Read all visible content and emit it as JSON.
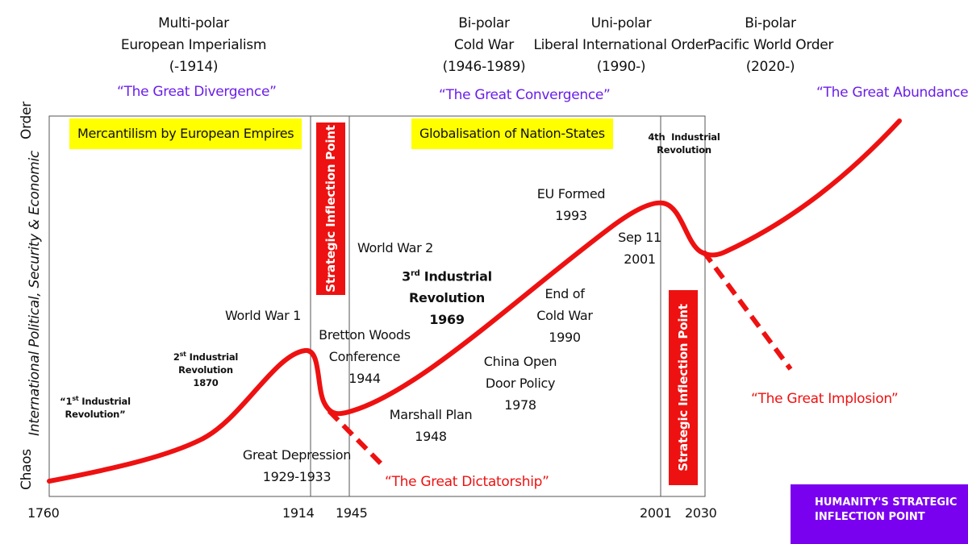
{
  "eras": [
    {
      "line1": "Multi-polar",
      "line2": "European Imperialism",
      "line3": "(-1914)"
    },
    {
      "line1": "Bi-polar",
      "line2": "Cold War",
      "line3": "(1946-1989)"
    },
    {
      "line1": "Uni-polar",
      "line2": "Liberal International Order",
      "line3": "(1990-)"
    },
    {
      "line1": "Bi-polar",
      "line2": "Pacific World Order",
      "line3": "(2020-)"
    }
  ],
  "phrases": {
    "divergence": "“The Great Divergence”",
    "convergence": "“The Great Convergence”",
    "abundance": "“The Great Abundance”",
    "implosion": "“The Great Implosion”",
    "dictatorship": "“The Great Dictatorship”"
  },
  "banners": {
    "mercantilism": "Mercantilism by European Empires",
    "globalisation": "Globalisation of Nation-States"
  },
  "inflection_label": "Strategic Inflection Point",
  "y_axis": {
    "top": "Order",
    "middle": "International Political, Security & Economic",
    "bottom": "Chaos"
  },
  "x_ticks": [
    "1760",
    "1914",
    "1945",
    "2001",
    "2030"
  ],
  "events": {
    "ir1": {
      "line1_pre": "“1",
      "sup": "st",
      "line1_post": " Industrial",
      "line2": "Revolution”"
    },
    "ir2": {
      "line1_pre": "2",
      "sup": "st",
      "line1_post": " Industrial",
      "line2": "Revolution",
      "line3": "1870"
    },
    "ww1": "World War 1",
    "depression": {
      "line1": "Great Depression",
      "line2": "1929-1933"
    },
    "bretton": {
      "line1": "Bretton Woods",
      "line2": "Conference",
      "line3": "1944"
    },
    "ww2": "World War 2",
    "ir3": {
      "line1_pre": "3",
      "sup": "rd",
      "line1_post": " Industrial",
      "line2": "Revolution",
      "line3": "1969"
    },
    "marshall": {
      "line1": "Marshall Plan",
      "line2": "1948"
    },
    "china": {
      "line1": "China Open",
      "line2": "Door Policy",
      "line3": "1978"
    },
    "coldwar": {
      "line1": "End of",
      "line2": "Cold War",
      "line3": "1990"
    },
    "eu": {
      "line1": "EU Formed",
      "line2": "1993"
    },
    "sep11": {
      "line1": "Sep 11",
      "line2": "2001"
    },
    "ir4": {
      "line1": "4th  Industrial",
      "line2": "Revolution"
    }
  },
  "badge": {
    "line1": "HUMANITY'S STRATEGIC",
    "line2": "INFLECTION POINT"
  },
  "colors": {
    "curve": "#ee1111",
    "purple_text": "#6a1ee8",
    "banner": "#ffff00",
    "badge": "#7a00f0"
  }
}
